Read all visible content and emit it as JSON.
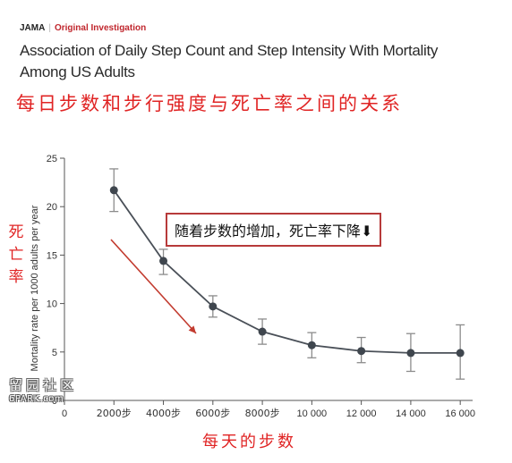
{
  "header": {
    "journal": "JAMA",
    "section": "Original Investigation",
    "title_line1": "Association of Daily Step Count and Step Intensity With Mortality",
    "title_line2": "Among US Adults"
  },
  "cn_title": "每日步数和步行强度与死亡率之间的关系",
  "cn_ylabel": "死亡率",
  "cn_xlabel": "每天的步数",
  "annotation": "随着步数的增加，死亡率下降⬇",
  "watermark": {
    "cn": "留园社区",
    "en": "6PARK.com"
  },
  "colors": {
    "line": "#4a5058",
    "point": "#3f464e",
    "error_bar": "#8c8c8c",
    "arrow": "#c23b2f",
    "cn_text": "#e02424",
    "section": "#c0262d"
  },
  "chart_data": {
    "type": "line",
    "title": "",
    "xlabel": "",
    "ylabel": "Mortality rate per 1000 adults per year",
    "x": [
      2000,
      4000,
      6000,
      8000,
      10000,
      12000,
      14000,
      16000
    ],
    "x_tick_labels": [
      "0",
      "2000步",
      "4000步",
      "6000步",
      "8000步",
      "10 000",
      "12 000",
      "14 000",
      "16 000"
    ],
    "x_ticks": [
      0,
      2000,
      4000,
      6000,
      8000,
      10000,
      12000,
      14000,
      16000
    ],
    "y_ticks": [
      0,
      5,
      10,
      15,
      20,
      25
    ],
    "xlim": [
      0,
      16500
    ],
    "ylim": [
      0,
      25
    ],
    "grid": false,
    "series": [
      {
        "values": [
          21.7,
          14.4,
          9.7,
          7.1,
          5.7,
          5.1,
          4.9,
          4.9
        ],
        "lower": [
          19.5,
          13.0,
          8.6,
          5.8,
          4.4,
          3.9,
          3.0,
          2.2
        ],
        "upper": [
          23.9,
          15.6,
          10.8,
          8.4,
          7.0,
          6.5,
          6.9,
          7.8
        ]
      }
    ]
  }
}
